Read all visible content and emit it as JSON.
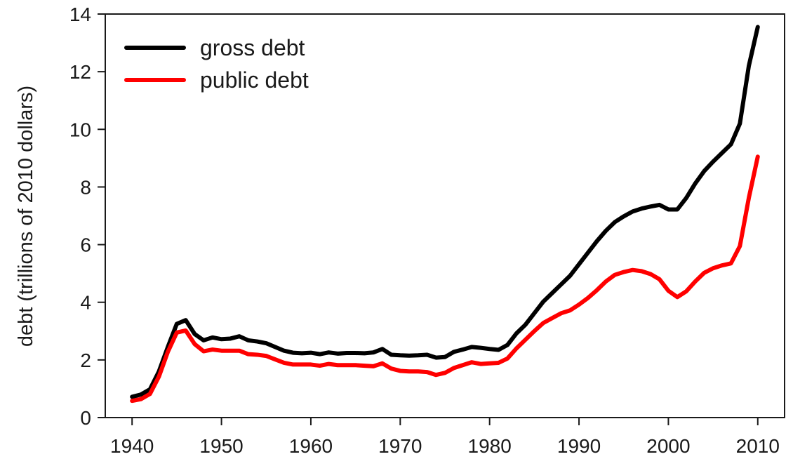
{
  "chart_data": {
    "type": "line",
    "title": "",
    "xlabel": "",
    "ylabel": "debt (trillions of 2010 dollars)",
    "xlim": [
      1937,
      2013
    ],
    "ylim": [
      0,
      14
    ],
    "xticks": [
      1940,
      1950,
      1960,
      1970,
      1980,
      1990,
      2000,
      2010
    ],
    "yticks": [
      0,
      2,
      4,
      6,
      8,
      10,
      12,
      14
    ],
    "grid": false,
    "legend_position": "top-left",
    "x": [
      1940,
      1941,
      1942,
      1943,
      1944,
      1945,
      1946,
      1947,
      1948,
      1949,
      1950,
      1951,
      1952,
      1953,
      1954,
      1955,
      1956,
      1957,
      1958,
      1959,
      1960,
      1961,
      1962,
      1963,
      1964,
      1965,
      1966,
      1967,
      1968,
      1969,
      1970,
      1971,
      1972,
      1973,
      1974,
      1975,
      1976,
      1977,
      1978,
      1979,
      1980,
      1981,
      1982,
      1983,
      1984,
      1985,
      1986,
      1987,
      1988,
      1989,
      1990,
      1991,
      1992,
      1993,
      1994,
      1995,
      1996,
      1997,
      1998,
      1999,
      2000,
      2001,
      2002,
      2003,
      2004,
      2005,
      2006,
      2007,
      2008,
      2009,
      2010
    ],
    "series": [
      {
        "name": "gross debt",
        "color": "#000000",
        "values": [
          0.72,
          0.8,
          0.98,
          1.6,
          2.45,
          3.25,
          3.38,
          2.9,
          2.68,
          2.78,
          2.72,
          2.74,
          2.82,
          2.68,
          2.64,
          2.58,
          2.45,
          2.32,
          2.25,
          2.23,
          2.25,
          2.2,
          2.26,
          2.22,
          2.24,
          2.24,
          2.23,
          2.26,
          2.38,
          2.18,
          2.16,
          2.15,
          2.16,
          2.18,
          2.08,
          2.1,
          2.28,
          2.36,
          2.45,
          2.42,
          2.38,
          2.35,
          2.52,
          2.92,
          3.22,
          3.62,
          4.02,
          4.32,
          4.62,
          4.92,
          5.32,
          5.72,
          6.12,
          6.48,
          6.78,
          6.98,
          7.15,
          7.25,
          7.32,
          7.38,
          7.22,
          7.22,
          7.62,
          8.12,
          8.55,
          8.88,
          9.18,
          9.48,
          10.2,
          12.2,
          13.55
        ]
      },
      {
        "name": "public debt",
        "color": "#ff0000",
        "values": [
          0.58,
          0.64,
          0.82,
          1.42,
          2.28,
          2.95,
          3.02,
          2.55,
          2.3,
          2.36,
          2.32,
          2.32,
          2.32,
          2.2,
          2.18,
          2.14,
          2.02,
          1.9,
          1.84,
          1.84,
          1.84,
          1.8,
          1.86,
          1.82,
          1.82,
          1.82,
          1.8,
          1.78,
          1.88,
          1.7,
          1.62,
          1.6,
          1.6,
          1.58,
          1.48,
          1.55,
          1.72,
          1.82,
          1.92,
          1.86,
          1.88,
          1.9,
          2.05,
          2.4,
          2.7,
          3.0,
          3.28,
          3.45,
          3.62,
          3.72,
          3.92,
          4.15,
          4.42,
          4.72,
          4.95,
          5.05,
          5.12,
          5.08,
          4.98,
          4.8,
          4.4,
          4.18,
          4.38,
          4.72,
          5.02,
          5.18,
          5.28,
          5.35,
          5.95,
          7.62,
          9.05
        ]
      }
    ]
  }
}
